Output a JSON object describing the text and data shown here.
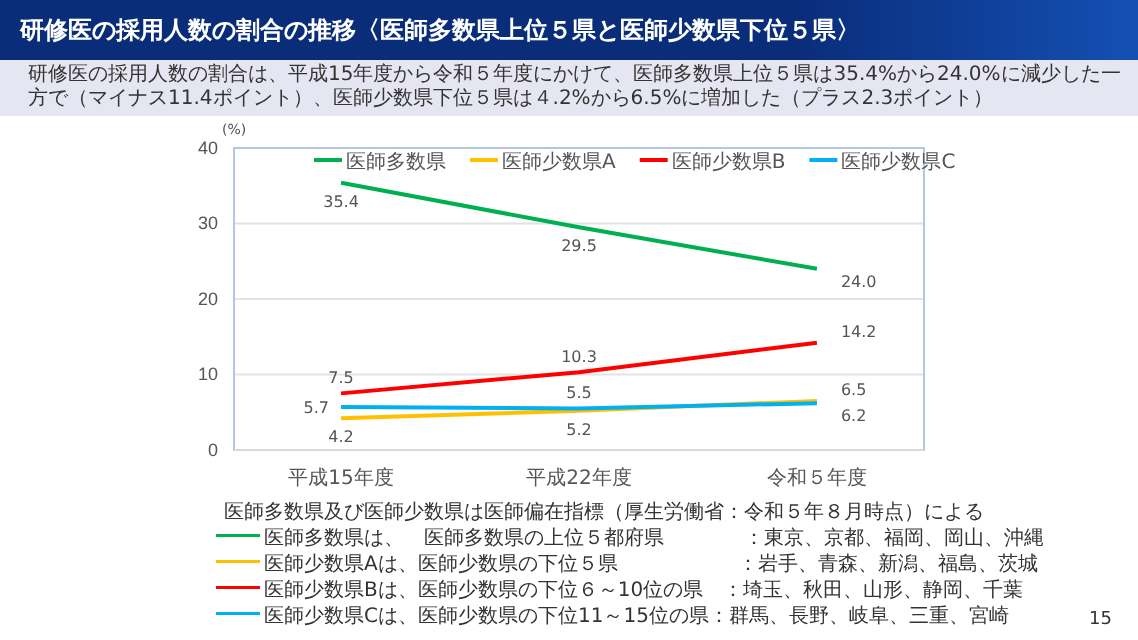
{
  "chart_data": {
    "type": "line",
    "title": "研修医の採用人数の割合の推移〈医師多数県上位５県と医師少数県下位５県〉",
    "subtitle": "研修医の採用人数の割合は、平成15年度から令和５年度にかけて、医師多数県上位５県は35.4%から24.0%に減少した一方で（マイナス11.4ポイント）、医師少数県下位５県は４.2%から6.5%に増加した（プラス2.3ポイント）",
    "ylabel": "(%)",
    "categories": [
      "平成15年度",
      "平成22年度",
      "令和５年度"
    ],
    "series": [
      {
        "name": "医師多数県",
        "color": "#00b050",
        "values": [
          35.4,
          29.5,
          24.0
        ],
        "value_labels": [
          "35.4",
          "29.5",
          "24.0"
        ]
      },
      {
        "name": "医師少数県A",
        "color": "#ffc000",
        "values": [
          4.2,
          5.2,
          6.5
        ],
        "value_labels": [
          "4.2",
          "5.2",
          "6.5"
        ]
      },
      {
        "name": "医師少数県B",
        "color": "#ff0000",
        "values": [
          7.5,
          10.3,
          14.2
        ],
        "value_labels": [
          "7.5",
          "10.3",
          "14.2"
        ]
      },
      {
        "name": "医師少数県C",
        "color": "#00b0f0",
        "values": [
          5.7,
          5.5,
          6.2
        ],
        "value_labels": [
          "5.7",
          "5.5",
          "6.2"
        ]
      }
    ],
    "ylim": [
      0,
      40
    ],
    "yticks": [
      0,
      10,
      20,
      30,
      40
    ],
    "grid": "y",
    "legend": "top",
    "marker": "none",
    "line_style": "solid",
    "annotations": [
      "医師多数県及び医師少数県は医師偏在指標（厚生労働省：令和５年８月時点）による",
      "医師多数県は、　医師多数県の上位５都府県　　　　：東京、京都、福岡、岡山、沖縄",
      "医師少数県Aは、医師少数県の下位５県　　　　　　：岩手、青森、新潟、福島、茨城",
      "医師少数県Bは、医師少数県の下位６～10位の県　：埼玉、秋田、山形、静岡、千葉",
      "医師少数県Cは、医師少数県の下位11～15位の県：群馬、長野、岐阜、三重、宮崎",
      "15"
    ]
  }
}
